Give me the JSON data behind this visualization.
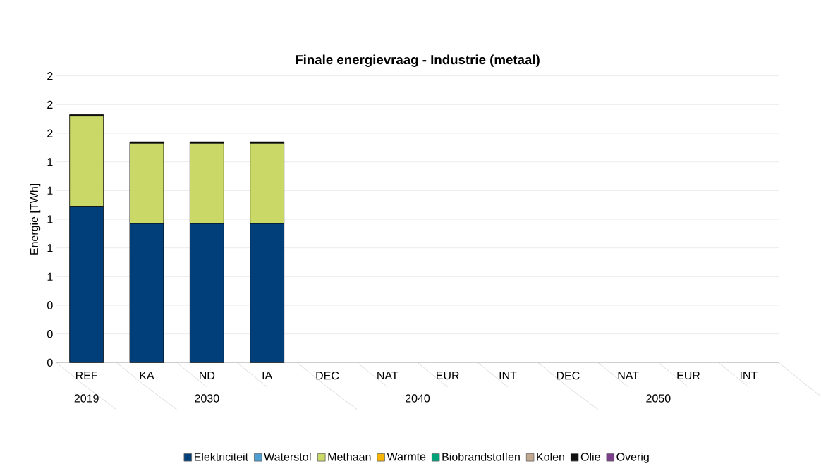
{
  "chart_data": {
    "type": "bar",
    "title": "Finale energievraag - Industrie (metaal)",
    "ylabel": "Energie [TWh]",
    "categories": [
      "REF",
      "KA",
      "ND",
      "IA",
      "DEC",
      "NAT",
      "EUR",
      "INT",
      "DEC",
      "NAT",
      "EUR",
      "INT"
    ],
    "annotations": [
      "2019",
      "2030",
      "2040",
      "2050"
    ],
    "stacked": true,
    "grid": "y",
    "legend": "bottom",
    "ylim": [
      0,
      2
    ],
    "yticks": [
      0,
      {
        "value": 0.2,
        "label": "0"
      },
      {
        "value": 0.4,
        "label": "0"
      },
      {
        "value": 0.6,
        "label": "1"
      },
      {
        "value": 0.8,
        "label": "1"
      },
      1,
      {
        "value": 1.2,
        "label": "1"
      },
      {
        "value": 1.4,
        "label": "1"
      },
      {
        "value": 1.6,
        "label": "2"
      },
      {
        "value": 1.8,
        "label": "2"
      },
      2
    ],
    "series": [
      {
        "name": "Elektriciteit",
        "color": "#003f7a",
        "values": [
          1.09,
          0.97,
          0.97,
          0.97,
          null,
          null,
          null,
          null,
          null,
          null,
          null,
          null
        ]
      },
      {
        "name": "Waterstof",
        "color": "#4f9fd3",
        "values": [
          0,
          0,
          0,
          0,
          null,
          null,
          null,
          null,
          null,
          null,
          null,
          null
        ]
      },
      {
        "name": "Methaan",
        "color": "#c9d866",
        "values": [
          0.63,
          0.56,
          0.56,
          0.56,
          null,
          null,
          null,
          null,
          null,
          null,
          null,
          null
        ]
      },
      {
        "name": "Warmte",
        "color": "#f5b400",
        "values": [
          0,
          0,
          0,
          0,
          null,
          null,
          null,
          null,
          null,
          null,
          null,
          null
        ]
      },
      {
        "name": "Biobrandstoffen",
        "color": "#00a27a",
        "values": [
          0,
          0,
          0,
          0,
          null,
          null,
          null,
          null,
          null,
          null,
          null,
          null
        ]
      },
      {
        "name": "Kolen",
        "color": "#c2a88e",
        "values": [
          0,
          0,
          0,
          0,
          null,
          null,
          null,
          null,
          null,
          null,
          null,
          null
        ]
      },
      {
        "name": "Olie",
        "color": "#111111",
        "values": [
          0.01,
          0.01,
          0.01,
          0.01,
          null,
          null,
          null,
          null,
          null,
          null,
          null,
          null
        ]
      },
      {
        "name": "Overig",
        "color": "#7b3f8c",
        "values": [
          0,
          0,
          0,
          0,
          null,
          null,
          null,
          null,
          null,
          null,
          null,
          null
        ]
      }
    ]
  }
}
